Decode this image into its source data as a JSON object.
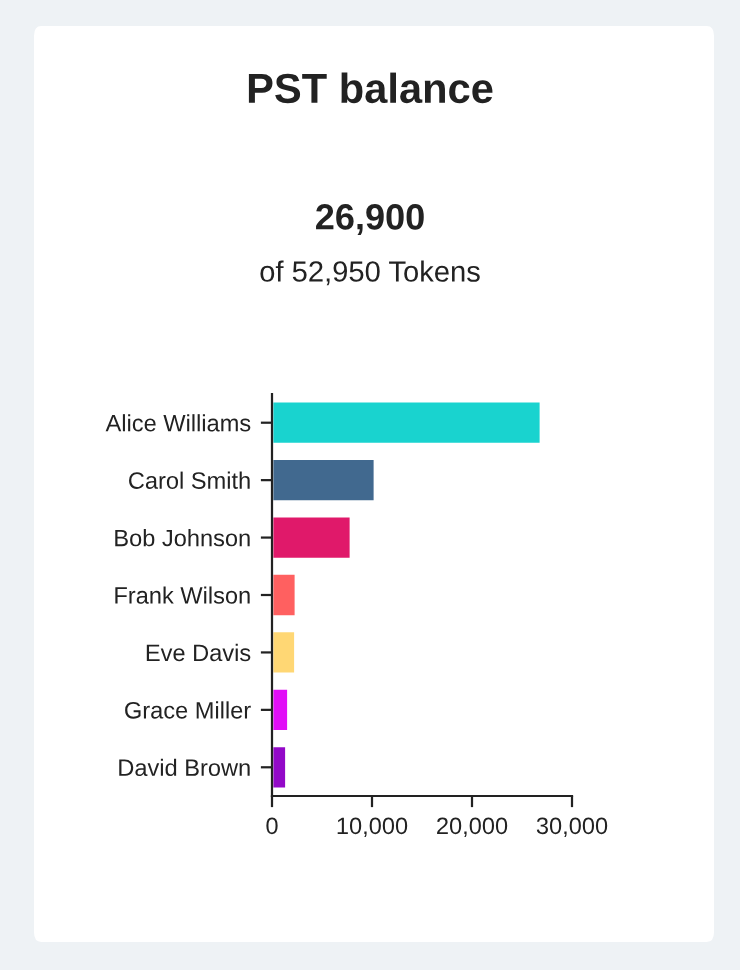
{
  "chart_data": {
    "type": "bar",
    "orientation": "horizontal",
    "title": "PST balance",
    "subtitle": "26,900",
    "annotations": [
      "of 52,950 Tokens"
    ],
    "categories": [
      "Alice Williams",
      "Carol Smith",
      "Bob Johnson",
      "Frank Wilson",
      "Eve Davis",
      "Grace Miller",
      "David Brown"
    ],
    "values": [
      26900,
      10300,
      7900,
      2400,
      2350,
      1650,
      1450
    ],
    "colors": [
      "#19d3cf",
      "#41698f",
      "#e0196a",
      "#ff6060",
      "#ffd774",
      "#e10ff7",
      "#9309c8"
    ],
    "xlim": [
      0,
      30000
    ],
    "xticks": [
      0,
      {
        "value": 10000,
        "label": "10,000"
      },
      {
        "value": 20000,
        "label": "20,000"
      },
      {
        "value": 30000,
        "label": "30,000"
      }
    ],
    "grid": false,
    "legend": false
  }
}
